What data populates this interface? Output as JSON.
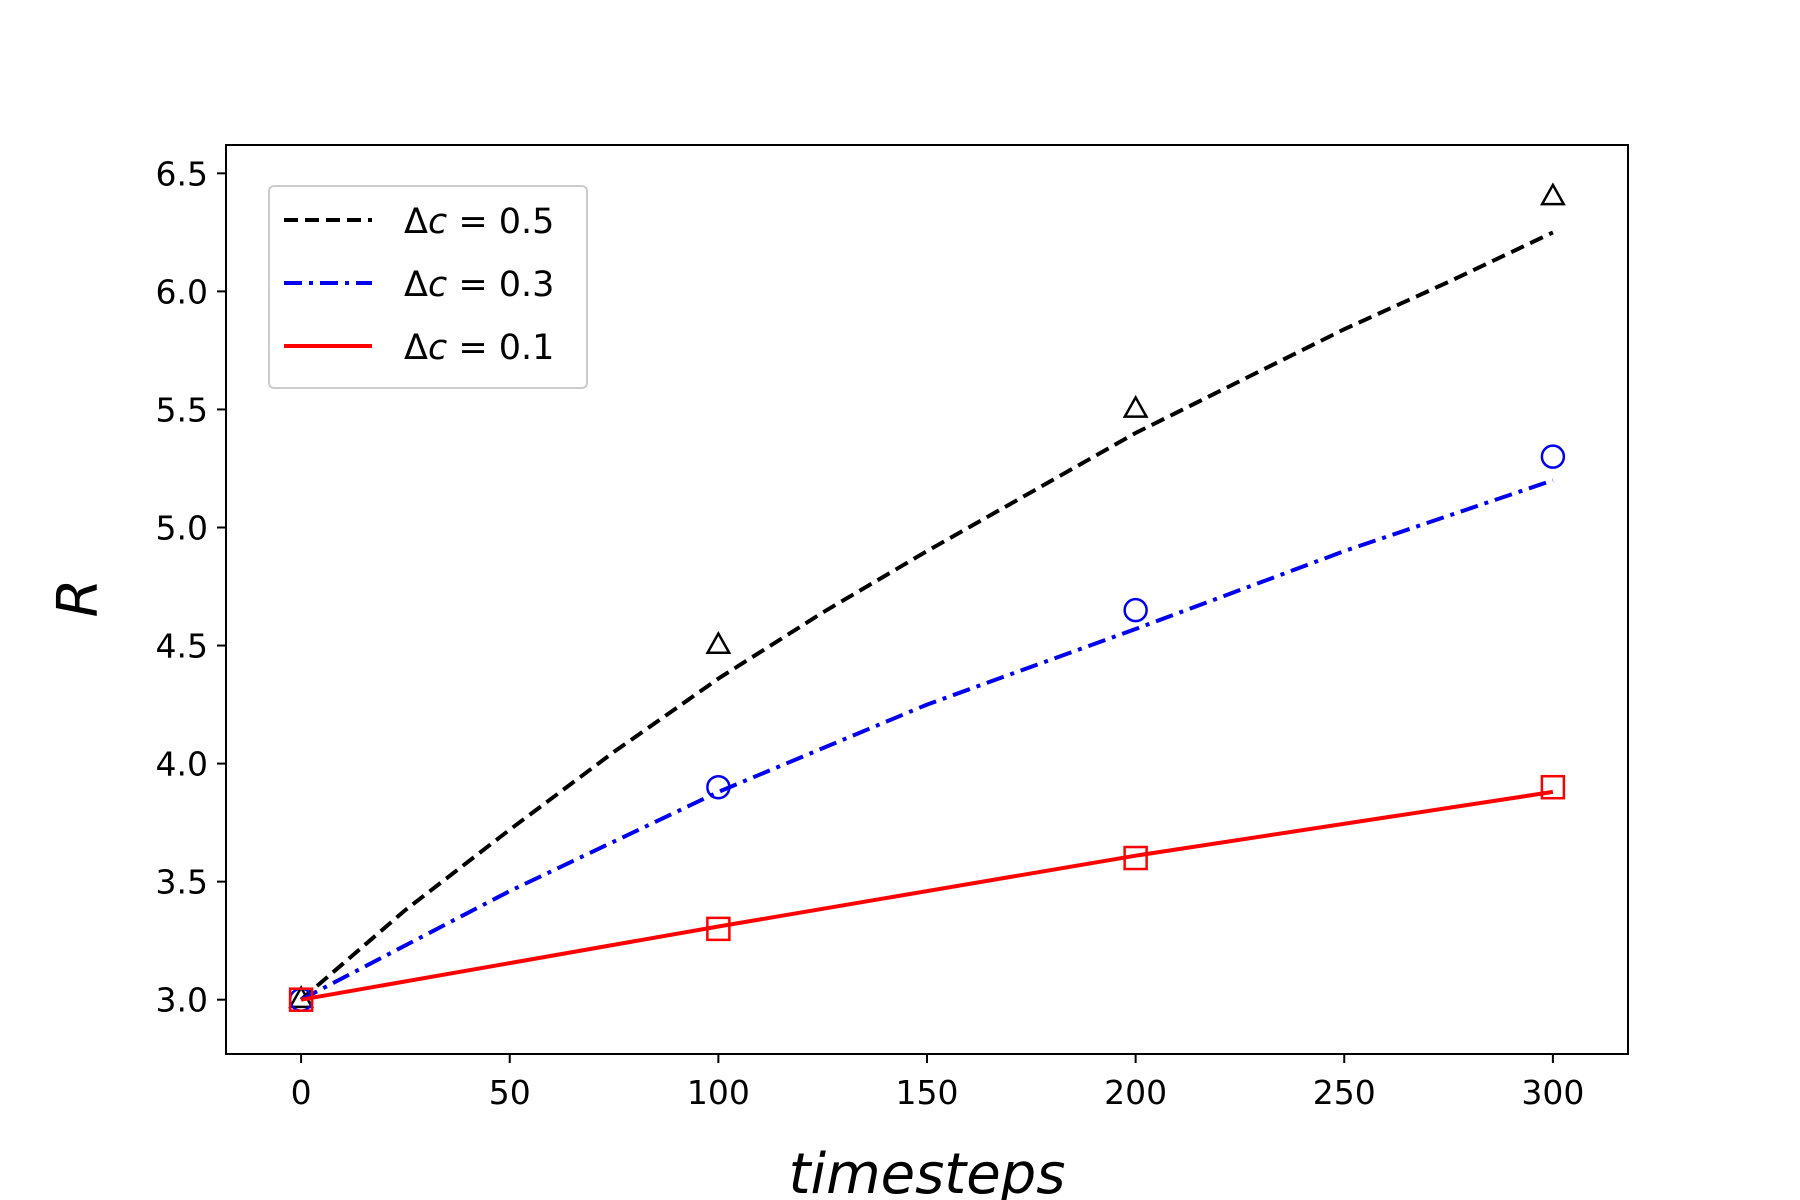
{
  "chart_data": {
    "type": "line",
    "xlabel": "timesteps",
    "ylabel": "R",
    "xlim": [
      -18,
      318
    ],
    "ylim": [
      2.77,
      6.62
    ],
    "xticks": [
      0,
      50,
      100,
      150,
      200,
      250,
      300
    ],
    "yticks": [
      3.0,
      3.5,
      4.0,
      4.5,
      5.0,
      5.5,
      6.0,
      6.5
    ],
    "grid": false,
    "legend_position": "top-left",
    "series": [
      {
        "name": "Δc = 0.5",
        "legend_label": {
          "prefix": "Δ",
          "var": "c",
          "suffix": " = 0.5"
        },
        "color": "#000000",
        "line_style": "dashed",
        "marker": "triangle",
        "fit_x": [
          0,
          25,
          50,
          75,
          100,
          125,
          150,
          175,
          200,
          225,
          250,
          275,
          300
        ],
        "fit_y": [
          3.0,
          3.38,
          3.72,
          4.05,
          4.36,
          4.64,
          4.9,
          5.15,
          5.4,
          5.62,
          5.84,
          6.04,
          6.25
        ],
        "points_x": [
          0,
          100,
          200,
          300
        ],
        "points_y": [
          3.0,
          4.5,
          5.5,
          6.4
        ]
      },
      {
        "name": "Δc = 0.3",
        "legend_label": {
          "prefix": "Δ",
          "var": "c",
          "suffix": " = 0.3"
        },
        "color": "#0000ee",
        "line_style": "dashdot",
        "marker": "circle",
        "fit_x": [
          0,
          50,
          100,
          150,
          200,
          250,
          300
        ],
        "fit_y": [
          3.0,
          3.46,
          3.88,
          4.25,
          4.57,
          4.9,
          5.2
        ],
        "points_x": [
          0,
          100,
          200,
          300
        ],
        "points_y": [
          3.0,
          3.9,
          4.65,
          5.3
        ]
      },
      {
        "name": "Δc = 0.1",
        "legend_label": {
          "prefix": "Δ",
          "var": "c",
          "suffix": " = 0.1"
        },
        "color": "#ff0000",
        "line_style": "solid",
        "marker": "square",
        "fit_x": [
          0,
          100,
          200,
          300
        ],
        "fit_y": [
          3.0,
          3.31,
          3.61,
          3.88
        ],
        "points_x": [
          0,
          100,
          200,
          300
        ],
        "points_y": [
          3.0,
          3.3,
          3.6,
          3.9
        ]
      }
    ]
  }
}
